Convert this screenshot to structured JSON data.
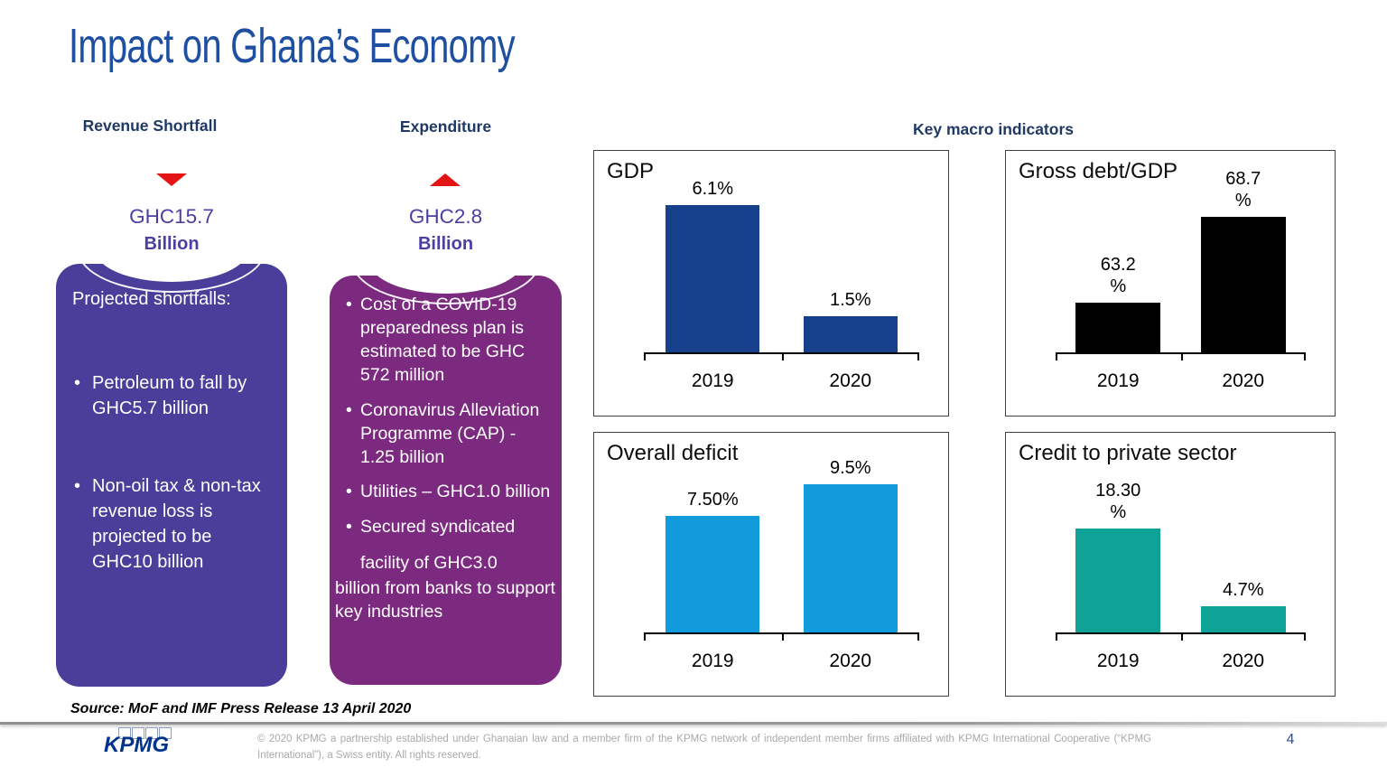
{
  "slide": {
    "title": "Impact on Ghana’s Economy",
    "page_number": "4",
    "source_note": "Source: MoF and IMF Press Release 13 April 2020",
    "footer_copyright": "© 2020 KPMG a partnership established under Ghanaian law and  a member firm of the KPMG network of independent member firms affiliated with KPMG International Cooperative (“KPMG International”), a Swiss entity.  All rights reserved.",
    "logo_text": "KPMG"
  },
  "revenue": {
    "header": "Revenue Shortfall",
    "arrow_direction": "down",
    "amount": "GHC15.7",
    "unit": "Billion",
    "box": {
      "heading": "Projected shortfalls:",
      "bullets": [
        "Petroleum to fall by GHC5.7 billion",
        "Non-oil tax & non-tax revenue loss is projected to be GHC10 billion"
      ]
    }
  },
  "expenditure": {
    "header": "Expenditure",
    "arrow_direction": "up",
    "amount": "GHC2.8",
    "unit": "Billion",
    "box": {
      "bullets": [
        "Cost of a COVID-19 preparedness plan  is estimated to be GHC 572 million",
        "Coronavirus Alleviation Programme (CAP) - 1.25 billion",
        "Utilities – GHC1.0 billion",
        "Secured syndicated"
      ],
      "tail_line1": "facility of GHC3.0",
      "tail_line2": "billion from banks to support key industries"
    }
  },
  "indicators": {
    "header": "Key macro indicators"
  },
  "chart_data": [
    {
      "type": "bar",
      "title": "GDP",
      "categories": [
        "2019",
        "2020"
      ],
      "values": [
        6.1,
        1.5
      ],
      "value_labels": [
        "6.1%",
        "1.5%"
      ],
      "ylim": [
        0,
        7.75
      ],
      "bar_color": "#16408C",
      "grid": false,
      "legend": false
    },
    {
      "type": "bar",
      "title": "Gross debt/GDP",
      "categories": [
        "2019",
        "2020"
      ],
      "values": [
        63.2,
        68.7
      ],
      "value_labels": [
        "63.2\n%",
        "68.7\n%"
      ],
      "ylim": [
        60,
        72
      ],
      "bar_color": "#000000",
      "grid": false,
      "legend": false
    },
    {
      "type": "bar",
      "title": "Overall deficit",
      "categories": [
        "2019",
        "2020"
      ],
      "values": [
        7.5,
        9.5
      ],
      "value_labels": [
        "7.50%",
        "9.5%"
      ],
      "ylim": [
        0,
        12
      ],
      "bar_color": "#119BDC",
      "grid": false,
      "legend": false
    },
    {
      "type": "bar",
      "title": "Credit to private sector",
      "categories": [
        "2019",
        "2020"
      ],
      "values": [
        18.3,
        4.7
      ],
      "value_labels": [
        "18.30\n%",
        "4.7%"
      ],
      "ylim": [
        0,
        33
      ],
      "bar_color": "#0FA398",
      "grid": false,
      "legend": false
    }
  ],
  "colors": {
    "title_blue": "#1E4FA0",
    "section_header_navy": "#1F3864",
    "indigo_box": "#4A3E9B",
    "magenta_box": "#7C2A80",
    "red_arrow": "#E31414",
    "kpmg_blue": "#00338D",
    "copyright_gray": "#A9A9A9",
    "page_number_blue": "#33527F"
  }
}
